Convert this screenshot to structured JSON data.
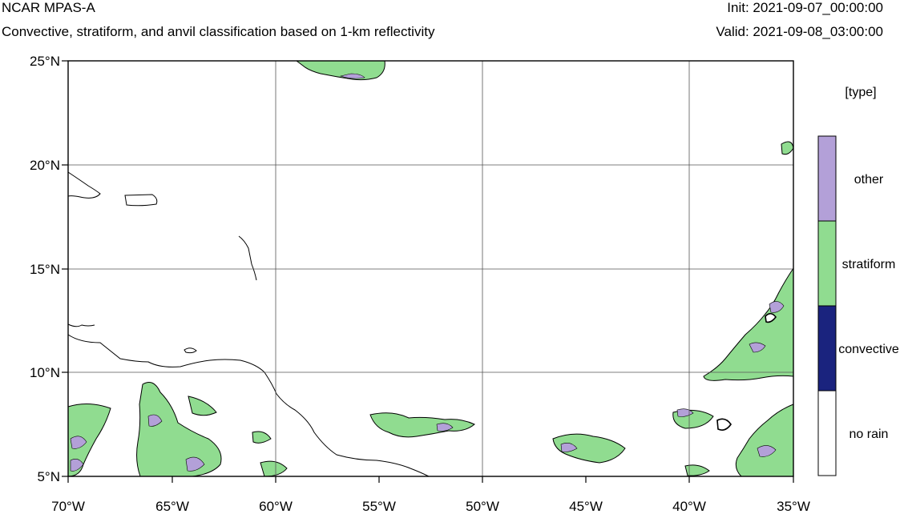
{
  "header": {
    "title": "NCAR MPAS-A",
    "subtitle": "Convective, stratiform, and anvil classification based on 1-km reflectivity",
    "init": "Init: 2021-09-07_00:00:00",
    "valid": "Valid: 2021-09-08_03:00:00"
  },
  "map": {
    "lon_range": [
      -70,
      -35
    ],
    "lat_range": [
      5,
      25
    ],
    "lon_ticks": [
      -70,
      -65,
      -60,
      -55,
      -50,
      -45,
      -40,
      -35
    ],
    "lat_ticks": [
      5,
      10,
      15,
      20,
      25
    ],
    "lon_labels": [
      "70°W",
      "65°W",
      "60°W",
      "55°W",
      "50°W",
      "45°W",
      "40°W",
      "35°W"
    ],
    "lat_labels": [
      "5°N",
      "10°N",
      "15°N",
      "20°N",
      "25°N"
    ],
    "grid": true
  },
  "legend": {
    "title": "[type]",
    "classes": [
      {
        "label": "other",
        "color": "#b3a0d8"
      },
      {
        "label": "stratiform",
        "color": "#90dc90"
      },
      {
        "label": "convective",
        "color": "#1a237e"
      },
      {
        "label": "no rain",
        "color": "#ffffff"
      }
    ]
  }
}
